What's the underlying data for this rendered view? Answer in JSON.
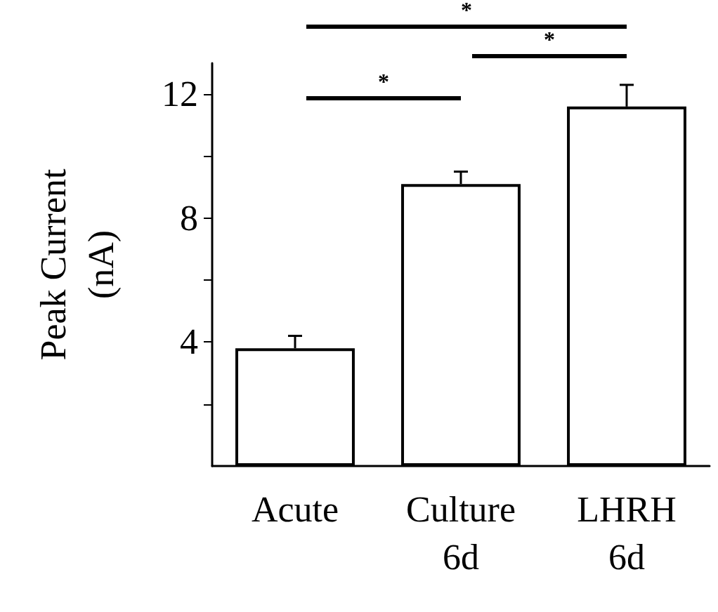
{
  "chart_data": {
    "type": "bar",
    "ylabel": "Peak Current\n(nA)",
    "categories": [
      "Acute",
      "Culture\n6d",
      "LHRH\n6d"
    ],
    "values": [
      3.8,
      9.1,
      11.6
    ],
    "errors": [
      [
        3.8,
        4.2
      ],
      [
        9.1,
        9.5
      ],
      [
        11.6,
        12.3
      ]
    ],
    "color": "#ffffff",
    "ylim": [
      0,
      13
    ],
    "yticks": [
      {
        "value": 2,
        "label": null
      },
      4,
      {
        "value": 6,
        "label": null
      },
      8,
      {
        "value": 10,
        "label": null
      },
      12
    ],
    "grid": false,
    "annotations": [
      "*",
      "*",
      "*"
    ]
  }
}
